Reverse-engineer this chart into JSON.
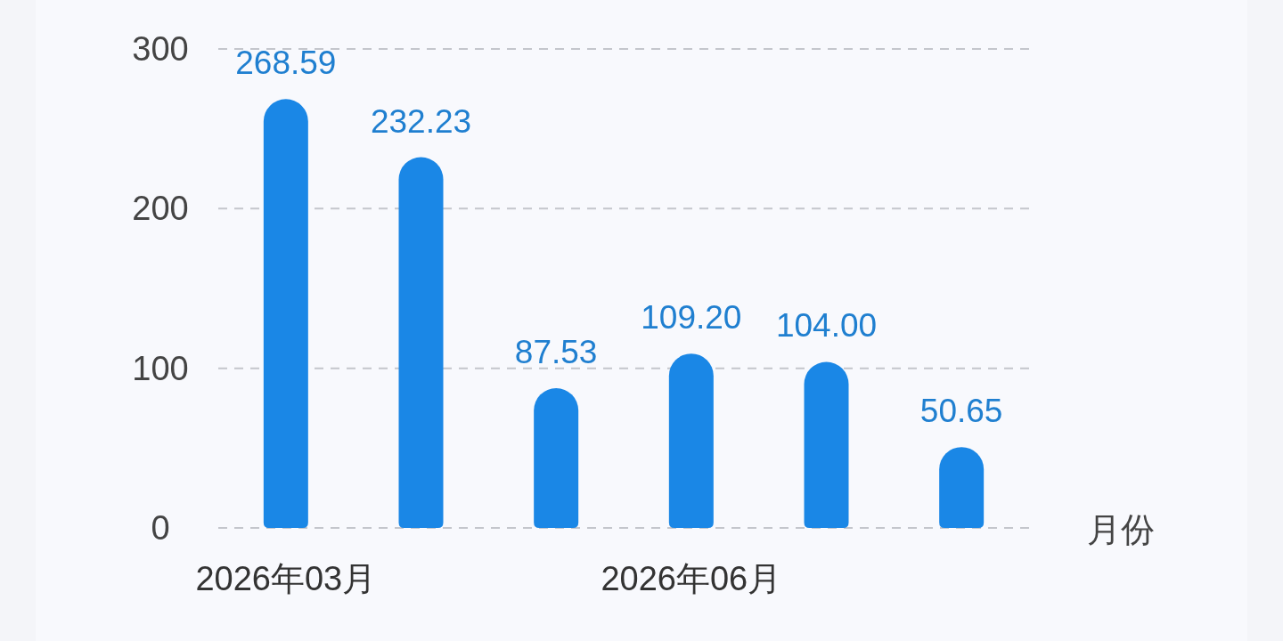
{
  "chart_data": {
    "type": "bar",
    "xlabel": "月份",
    "categories": [
      "2026年03月",
      null,
      null,
      "2026年06月",
      null,
      null
    ],
    "values": [
      268.59,
      232.23,
      87.53,
      109.2,
      104.0,
      50.65
    ],
    "value_labels": [
      "268.59",
      "232.23",
      "87.53",
      "109.20",
      "104.00",
      "50.65"
    ],
    "color": "#1a87e6",
    "ylim": [
      0,
      300
    ],
    "yticks": [
      0,
      100,
      200,
      300
    ],
    "grid": "y"
  }
}
